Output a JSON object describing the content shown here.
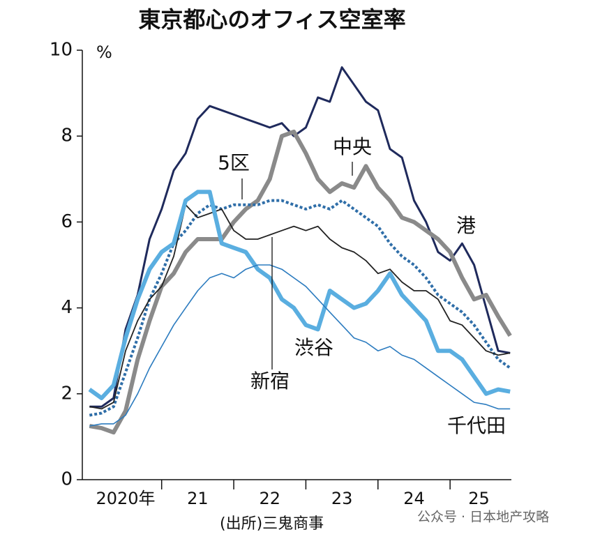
{
  "chart_data": {
    "type": "line",
    "title": "東京都心のオフィス空室率",
    "y_unit": "%",
    "source": "(出所)三鬼商事",
    "watermark": "公众号 · 日本地产攻略",
    "x": [
      2020,
      2020.167,
      2020.333,
      2020.5,
      2020.667,
      2020.833,
      2021,
      2021.167,
      2021.333,
      2021.5,
      2021.667,
      2021.833,
      2022,
      2022.167,
      2022.333,
      2022.5,
      2022.667,
      2022.833,
      2023,
      2023.167,
      2023.333,
      2023.5,
      2023.667,
      2023.833,
      2024,
      2024.167,
      2024.333,
      2024.5,
      2024.667,
      2024.833,
      2025,
      2025.167,
      2025.333,
      2025.5,
      2025.667,
      2025.833
    ],
    "xlim": [
      2019.9,
      2025.85
    ],
    "xticks": [
      2021,
      2022,
      2023,
      2024,
      2025
    ],
    "year_labels": [
      {
        "value": 2020.5,
        "label": "2020年"
      },
      {
        "value": 2021.5,
        "label": "21"
      },
      {
        "value": 2022.5,
        "label": "22"
      },
      {
        "value": 2023.5,
        "label": "23"
      },
      {
        "value": 2024.5,
        "label": "24"
      },
      {
        "value": 2025.4,
        "label": "25"
      }
    ],
    "ylim": [
      0,
      10
    ],
    "yticks": [
      0,
      2,
      4,
      6,
      8,
      10
    ],
    "series": [
      {
        "name": "港",
        "color": "#1f2a5c",
        "values": [
          1.7,
          1.7,
          1.9,
          3.5,
          4.3,
          5.6,
          6.3,
          7.2,
          7.6,
          8.4,
          8.7,
          8.6,
          8.5,
          8.4,
          8.3,
          8.2,
          8.3,
          8.0,
          8.2,
          8.9,
          8.8,
          9.6,
          9.2,
          8.8,
          8.6,
          7.7,
          7.5,
          6.5,
          6.0,
          5.3,
          5.1,
          5.5,
          5.0,
          4.0,
          3.0,
          2.95
        ]
      },
      {
        "name": "中央",
        "color": "#8a8a8a",
        "values": [
          1.25,
          1.2,
          1.1,
          1.6,
          2.8,
          3.7,
          4.5,
          4.8,
          5.3,
          5.6,
          5.6,
          5.6,
          6.0,
          6.3,
          6.5,
          7.0,
          8.0,
          8.1,
          7.6,
          7.0,
          6.7,
          6.9,
          6.8,
          7.3,
          6.8,
          6.5,
          6.1,
          6.0,
          5.8,
          5.6,
          5.3,
          4.7,
          4.2,
          4.3,
          3.8,
          3.35
        ]
      },
      {
        "name": "5区",
        "color": "#2f6ea8",
        "dotted": true,
        "values": [
          1.5,
          1.55,
          1.7,
          2.5,
          3.3,
          4.2,
          4.8,
          5.5,
          5.8,
          6.2,
          6.4,
          6.3,
          6.4,
          6.4,
          6.4,
          6.5,
          6.5,
          6.4,
          6.3,
          6.4,
          6.3,
          6.5,
          6.3,
          6.1,
          5.9,
          5.5,
          5.2,
          5.0,
          4.7,
          4.3,
          4.1,
          3.9,
          3.6,
          3.2,
          2.8,
          2.6
        ]
      },
      {
        "name": "新宿",
        "color": "#222222",
        "values": [
          1.7,
          1.65,
          1.8,
          3.0,
          3.7,
          4.2,
          4.5,
          5.2,
          6.4,
          6.1,
          6.2,
          6.3,
          5.8,
          5.6,
          5.6,
          5.7,
          5.8,
          5.9,
          5.8,
          5.9,
          5.6,
          5.4,
          5.3,
          5.1,
          4.8,
          4.9,
          4.6,
          4.4,
          4.4,
          4.2,
          3.7,
          3.6,
          3.3,
          3.0,
          2.9,
          2.95
        ]
      },
      {
        "name": "渋谷",
        "color": "#5aaee0",
        "values": [
          2.1,
          1.9,
          2.2,
          3.3,
          4.2,
          4.9,
          5.3,
          5.5,
          6.5,
          6.7,
          6.7,
          5.5,
          5.4,
          5.3,
          4.9,
          4.7,
          4.2,
          4.0,
          3.6,
          3.5,
          4.4,
          4.2,
          4.0,
          4.1,
          4.4,
          4.8,
          4.3,
          4.0,
          3.7,
          3.0,
          3.0,
          2.8,
          2.4,
          2.0,
          2.1,
          2.05
        ]
      },
      {
        "name": "千代田",
        "color": "#2b7bbf",
        "values": [
          1.25,
          1.3,
          1.3,
          1.5,
          2.0,
          2.6,
          3.1,
          3.6,
          4.0,
          4.4,
          4.7,
          4.8,
          4.7,
          4.9,
          5.0,
          5.0,
          4.9,
          4.7,
          4.5,
          4.2,
          3.9,
          3.6,
          3.3,
          3.2,
          3.0,
          3.1,
          2.9,
          2.8,
          2.6,
          2.4,
          2.2,
          2.0,
          1.8,
          1.75,
          1.65,
          1.65
        ]
      }
    ]
  }
}
